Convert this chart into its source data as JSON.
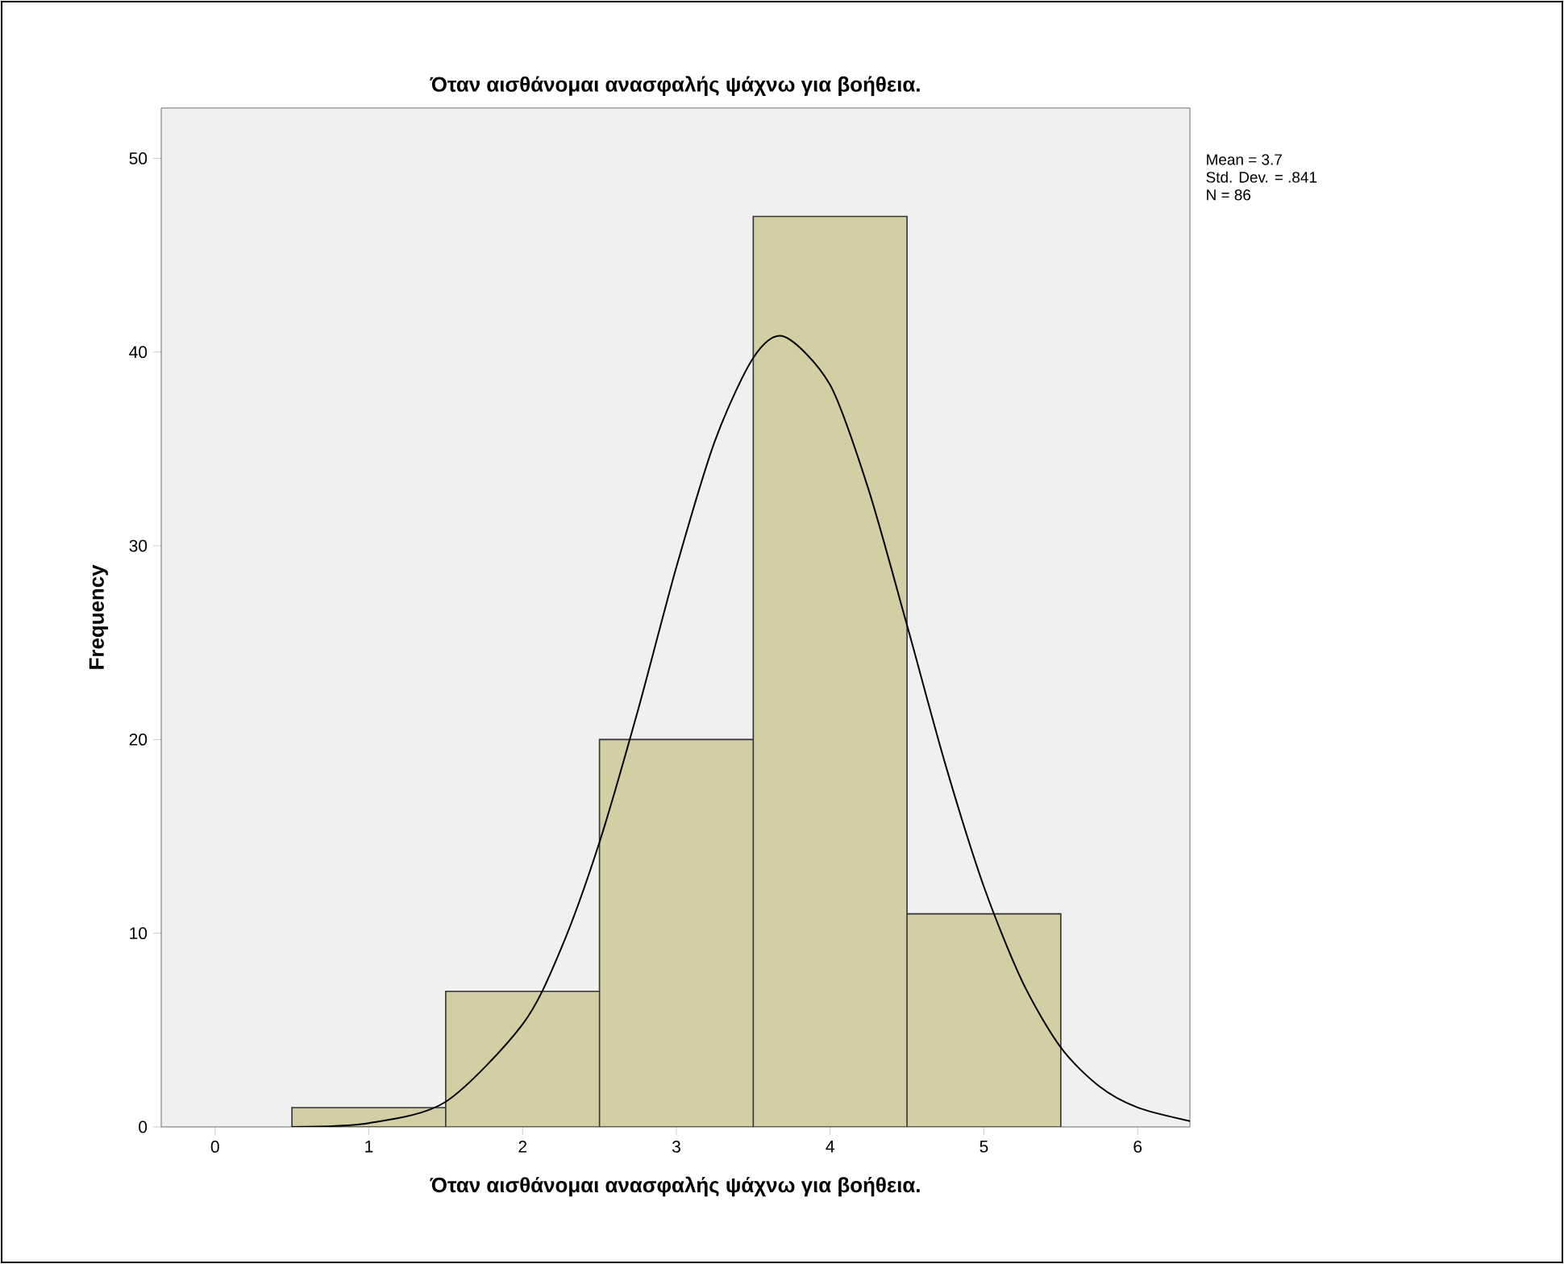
{
  "chart_data": {
    "type": "histogram",
    "title": "Όταν αισθάνομαι ανασφαλής ψάχνω για βοήθεια.",
    "xlabel": "Όταν αισθάνομαι ανασφαλής ψάχνω για βοήθεια.",
    "ylabel": "Frequency",
    "bins": [
      0.5,
      1.5,
      2.5,
      3.5,
      4.5,
      5.5
    ],
    "values": [
      1,
      7,
      20,
      47,
      11
    ],
    "color": "#d3cea3",
    "series": [
      {
        "type": "line",
        "color": "#000000",
        "x": [
          0.5,
          1.0,
          1.5,
          2.0,
          2.25,
          2.5,
          2.75,
          3.0,
          3.25,
          3.5,
          3.7,
          4.0,
          4.25,
          4.5,
          4.75,
          5.0,
          5.25,
          5.5,
          5.75,
          6.0,
          6.34
        ],
        "values": [
          0.0,
          0.2,
          1.3,
          5.3,
          9.2,
          14.7,
          21.5,
          28.9,
          35.4,
          39.7,
          40.8,
          38.3,
          32.9,
          25.9,
          18.7,
          12.4,
          7.5,
          4.1,
          2.1,
          1.0,
          0.3
        ]
      }
    ],
    "xlim": [
      -0.35,
      6.34
    ],
    "ylim": [
      0,
      52.6
    ],
    "xticks": [
      0,
      1,
      2,
      3,
      4,
      5,
      6
    ],
    "yticks": [
      0,
      10,
      20,
      30,
      40,
      50
    ],
    "annotations": [
      "Mean = 3.7",
      "Std. Dev. = .841",
      "N = 86"
    ]
  }
}
